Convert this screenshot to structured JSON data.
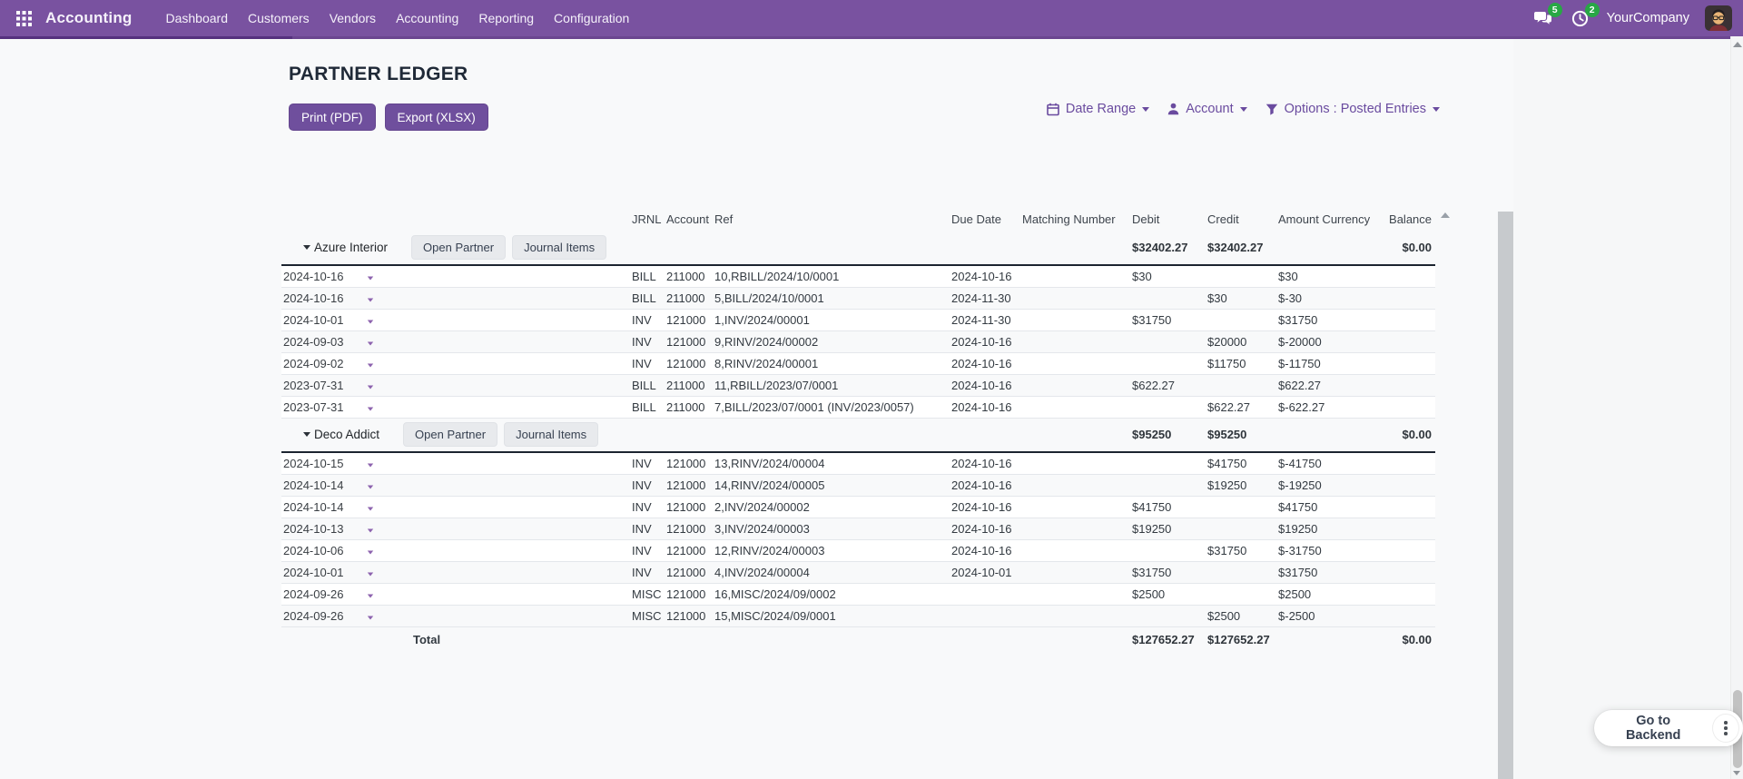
{
  "nav": {
    "app_name": "Accounting",
    "items": [
      "Dashboard",
      "Customers",
      "Vendors",
      "Accounting",
      "Reporting",
      "Configuration"
    ],
    "company": "YourCompany",
    "messages_badge": "5",
    "activities_badge": "2"
  },
  "page": {
    "title": "PARTNER LEDGER",
    "print_button": "Print (PDF)",
    "export_button": "Export (XLSX)",
    "filters": {
      "date_range": "Date Range",
      "account": "Account",
      "options": "Options : Posted Entries"
    },
    "backend_button": "Go to Backend"
  },
  "table": {
    "headers": [
      "JRNL",
      "Account",
      "Ref",
      "Due Date",
      "Matching Number",
      "Debit",
      "Credit",
      "Amount Currency",
      "Balance"
    ],
    "groups": [
      {
        "partner": "Azure Interior",
        "buttons": [
          "Open Partner",
          "Journal Items"
        ],
        "debit": "$32402.27",
        "credit": "$32402.27",
        "balance": "$0.00",
        "rows": [
          {
            "date": "2024-10-16",
            "jrnl": "BILL",
            "account": "211000",
            "ref": "10,RBILL/2024/10/0001",
            "due_date": "2024-10-16",
            "matching": "",
            "debit": "$30",
            "credit": "",
            "amount_currency": "$30",
            "balance": ""
          },
          {
            "date": "2024-10-16",
            "jrnl": "BILL",
            "account": "211000",
            "ref": "5,BILL/2024/10/0001",
            "due_date": "2024-11-30",
            "matching": "",
            "debit": "",
            "credit": "$30",
            "amount_currency": "$-30",
            "balance": ""
          },
          {
            "date": "2024-10-01",
            "jrnl": "INV",
            "account": "121000",
            "ref": "1,INV/2024/00001",
            "due_date": "2024-11-30",
            "matching": "",
            "debit": "$31750",
            "credit": "",
            "amount_currency": "$31750",
            "balance": ""
          },
          {
            "date": "2024-09-03",
            "jrnl": "INV",
            "account": "121000",
            "ref": "9,RINV/2024/00002",
            "due_date": "2024-10-16",
            "matching": "",
            "debit": "",
            "credit": "$20000",
            "amount_currency": "$-20000",
            "balance": ""
          },
          {
            "date": "2024-09-02",
            "jrnl": "INV",
            "account": "121000",
            "ref": "8,RINV/2024/00001",
            "due_date": "2024-10-16",
            "matching": "",
            "debit": "",
            "credit": "$11750",
            "amount_currency": "$-11750",
            "balance": ""
          },
          {
            "date": "2023-07-31",
            "jrnl": "BILL",
            "account": "211000",
            "ref": "11,RBILL/2023/07/0001",
            "due_date": "2024-10-16",
            "matching": "",
            "debit": "$622.27",
            "credit": "",
            "amount_currency": "$622.27",
            "balance": ""
          },
          {
            "date": "2023-07-31",
            "jrnl": "BILL",
            "account": "211000",
            "ref": "7,BILL/2023/07/0001 (INV/2023/0057)",
            "due_date": "2024-10-16",
            "matching": "",
            "debit": "",
            "credit": "$622.27",
            "amount_currency": "$-622.27",
            "balance": ""
          }
        ]
      },
      {
        "partner": "Deco Addict",
        "buttons": [
          "Open Partner",
          "Journal Items"
        ],
        "debit": "$95250",
        "credit": "$95250",
        "balance": "$0.00",
        "rows": [
          {
            "date": "2024-10-15",
            "jrnl": "INV",
            "account": "121000",
            "ref": "13,RINV/2024/00004",
            "due_date": "2024-10-16",
            "matching": "",
            "debit": "",
            "credit": "$41750",
            "amount_currency": "$-41750",
            "balance": ""
          },
          {
            "date": "2024-10-14",
            "jrnl": "INV",
            "account": "121000",
            "ref": "14,RINV/2024/00005",
            "due_date": "2024-10-16",
            "matching": "",
            "debit": "",
            "credit": "$19250",
            "amount_currency": "$-19250",
            "balance": ""
          },
          {
            "date": "2024-10-14",
            "jrnl": "INV",
            "account": "121000",
            "ref": "2,INV/2024/00002",
            "due_date": "2024-10-16",
            "matching": "",
            "debit": "$41750",
            "credit": "",
            "amount_currency": "$41750",
            "balance": ""
          },
          {
            "date": "2024-10-13",
            "jrnl": "INV",
            "account": "121000",
            "ref": "3,INV/2024/00003",
            "due_date": "2024-10-16",
            "matching": "",
            "debit": "$19250",
            "credit": "",
            "amount_currency": "$19250",
            "balance": ""
          },
          {
            "date": "2024-10-06",
            "jrnl": "INV",
            "account": "121000",
            "ref": "12,RINV/2024/00003",
            "due_date": "2024-10-16",
            "matching": "",
            "debit": "",
            "credit": "$31750",
            "amount_currency": "$-31750",
            "balance": ""
          },
          {
            "date": "2024-10-01",
            "jrnl": "INV",
            "account": "121000",
            "ref": "4,INV/2024/00004",
            "due_date": "2024-10-01",
            "matching": "",
            "debit": "$31750",
            "credit": "",
            "amount_currency": "$31750",
            "balance": ""
          },
          {
            "date": "2024-09-26",
            "jrnl": "MISC",
            "account": "121000",
            "ref": "16,MISC/2024/09/0002",
            "due_date": "",
            "matching": "",
            "debit": "$2500",
            "credit": "",
            "amount_currency": "$2500",
            "balance": ""
          },
          {
            "date": "2024-09-26",
            "jrnl": "MISC",
            "account": "121000",
            "ref": "15,MISC/2024/09/0001",
            "due_date": "",
            "matching": "",
            "debit": "",
            "credit": "$2500",
            "amount_currency": "$-2500",
            "balance": ""
          }
        ]
      }
    ],
    "total": {
      "label": "Total",
      "debit": "$127652.27",
      "credit": "$127652.27",
      "amount_currency": "",
      "balance": "$0.00"
    }
  },
  "icons": {
    "apps": "grid-3x3",
    "messages": "speech-bubbles",
    "activities": "clock",
    "date_range": "calendar",
    "account": "person",
    "options": "funnel",
    "row_toggle": "caret-down",
    "group_toggle": "caret-down",
    "sort": "triangle-up",
    "more": "kebab-vertical",
    "scroll_up": "triangle-up",
    "scroll_down": "triangle-down"
  },
  "colors": {
    "navbar": "#7952a0",
    "navbar_strip": "#6b4590",
    "navbar_strip_dark": "#55317e",
    "primary_button": "#6f4f9d",
    "badge_green": "#28a745",
    "accent_text": "#6a4b9f",
    "group_border": "#1c2430",
    "row_border": "#e4e7eb"
  }
}
